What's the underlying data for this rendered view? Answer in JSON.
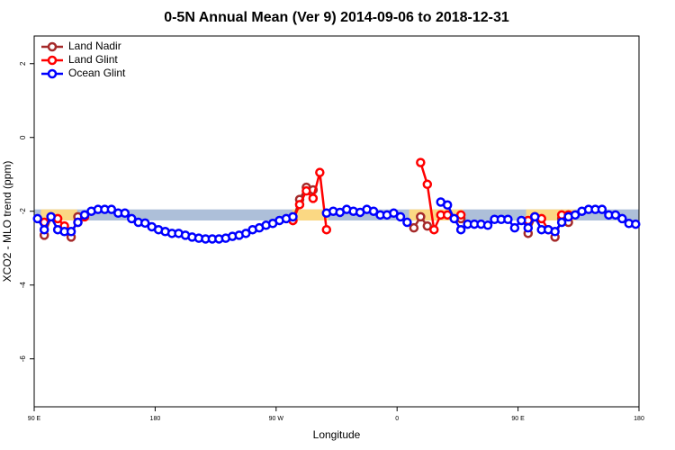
{
  "chart_data": {
    "type": "line",
    "title": "0-5N Annual Mean (Ver 9)   2014-09-06 to 2018-12-31",
    "xlabel": "Longitude",
    "ylabel": "XCO2 - MLO trend (ppm)",
    "xlim": [
      90,
      540
    ],
    "ylim": [
      -7.3,
      2.75
    ],
    "xticks": [
      {
        "value": 90,
        "label": "90 E"
      },
      180,
      {
        "value": 270,
        "label": "90 W"
      },
      {
        "value": 360,
        "label": "0"
      },
      {
        "value": 450,
        "label": "90 E"
      },
      {
        "value": 540,
        "label": "180"
      }
    ],
    "yticks": [
      -6,
      -4,
      -2,
      0,
      2
    ],
    "legend": "upper left",
    "band": [
      -2.25,
      -1.95
    ],
    "band_color": "#adbfd9",
    "highlight_ranges": [
      [
        95,
        122
      ],
      [
        282,
        309
      ],
      [
        369,
        409
      ],
      [
        456,
        493
      ]
    ],
    "highlight_color": "#fbd883",
    "series": [
      {
        "name": "Land Nadir",
        "color": "#a52a2a",
        "x": [
          97.5,
          102.5,
          107.5,
          117.5,
          122.5,
          127.5,
          282.5,
          287.5,
          292.5,
          297.5,
          302.5,
          372.5,
          377.5,
          382.5,
          387.5,
          407.5,
          412.5,
          457.5,
          462.5,
          467.5,
          477.5,
          482.5,
          487.5
        ],
        "values": [
          -2.65,
          -2.15,
          null,
          -2.7,
          -2.15,
          null,
          -2.25,
          -1.68,
          -1.35,
          -1.42,
          null,
          -2.45,
          -2.15,
          -2.4,
          null,
          -2.2,
          null,
          -2.6,
          -2.15,
          null,
          -2.7,
          -2.2,
          -2.3
        ]
      },
      {
        "name": "Land Glint",
        "color": "#ff0000",
        "x": [
          97.5,
          102.5,
          107.5,
          112.5,
          117.5,
          122.5,
          127.5,
          132.5,
          282.5,
          287.5,
          292.5,
          297.5,
          302.5,
          307.5,
          312.5,
          377.5,
          382.5,
          387.5,
          392.5,
          397.5,
          402.5,
          407.5,
          412.5,
          457.5,
          462.5,
          467.5,
          472.5,
          477.5,
          482.5,
          487.5
        ],
        "values": [
          -2.3,
          null,
          -2.2,
          -2.4,
          null,
          -2.3,
          -2.15,
          null,
          -2.25,
          -1.82,
          -1.45,
          -1.65,
          -0.95,
          -2.5,
          null,
          -0.68,
          -1.27,
          -2.5,
          -2.1,
          -2.1,
          null,
          -2.1,
          null,
          -2.25,
          -2.15,
          -2.2,
          -2.5,
          null,
          -2.1,
          -2.1
        ]
      },
      {
        "name": "Ocean Glint",
        "color": "#0000ff",
        "x": [
          92.5,
          97.5,
          102.5,
          107.5,
          112.5,
          117.5,
          122.5,
          127.5,
          132.5,
          137.5,
          142.5,
          147.5,
          152.5,
          157.5,
          162.5,
          167.5,
          172.5,
          177.5,
          182.5,
          187.5,
          192.5,
          197.5,
          202.5,
          207.5,
          212.5,
          217.5,
          222.5,
          227.5,
          232.5,
          237.5,
          242.5,
          247.5,
          252.5,
          257.5,
          262.5,
          267.5,
          272.5,
          277.5,
          282.5,
          287.5,
          292.5,
          297.5,
          302.5,
          307.5,
          312.5,
          317.5,
          322.5,
          327.5,
          332.5,
          337.5,
          342.5,
          347.5,
          352.5,
          357.5,
          362.5,
          367.5,
          372.5,
          377.5,
          382.5,
          387.5,
          392.5,
          397.5,
          402.5,
          407.5,
          412.5,
          417.5,
          422.5,
          427.5,
          432.5,
          437.5,
          442.5,
          447.5,
          452.5,
          457.5,
          462.5,
          467.5,
          472.5,
          477.5,
          482.5,
          487.5,
          492.5,
          497.5,
          502.5,
          507.5,
          512.5,
          517.5,
          522.5,
          527.5,
          532.5,
          537.5
        ],
        "values": [
          -2.2,
          -2.5,
          -2.15,
          -2.5,
          -2.55,
          -2.55,
          -2.3,
          -2.1,
          -2.0,
          -1.95,
          -1.95,
          -1.95,
          -2.05,
          -2.05,
          -2.2,
          -2.3,
          -2.32,
          -2.42,
          -2.5,
          -2.55,
          -2.6,
          -2.6,
          -2.65,
          -2.7,
          -2.73,
          -2.75,
          -2.75,
          -2.75,
          -2.73,
          -2.68,
          -2.65,
          -2.6,
          -2.5,
          -2.45,
          -2.38,
          -2.33,
          -2.25,
          -2.2,
          -2.15,
          null,
          null,
          null,
          null,
          -2.05,
          -2.0,
          -2.03,
          -1.95,
          -2.0,
          -2.03,
          -1.95,
          -2.0,
          -2.1,
          -2.1,
          -2.05,
          -2.15,
          -2.3,
          null,
          null,
          null,
          null,
          -1.75,
          -1.83,
          -2.2,
          -2.5,
          -2.35,
          -2.35,
          -2.35,
          -2.38,
          -2.22,
          -2.22,
          -2.22,
          -2.45,
          -2.25,
          -2.45,
          -2.15,
          -2.5,
          -2.5,
          -2.55,
          -2.3,
          -2.15,
          -2.1,
          -2.0,
          -1.95,
          -1.95,
          -1.95,
          -2.1,
          -2.1,
          -2.2,
          -2.33,
          -2.35
        ]
      }
    ]
  }
}
